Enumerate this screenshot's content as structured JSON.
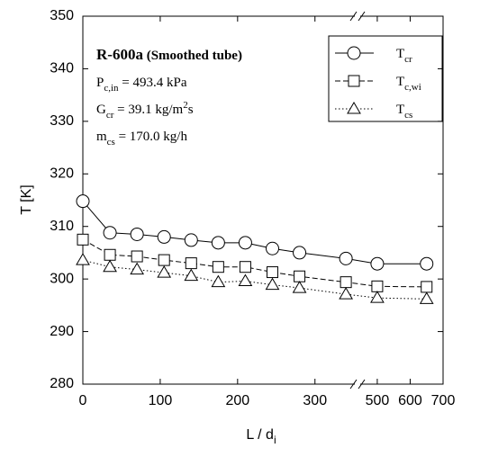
{
  "chart_data": {
    "type": "line",
    "xlabel": "L / d",
    "xlabel_sub": "i",
    "ylabel": "T  [K]",
    "annotation": {
      "title_bold": "R-600a",
      "title_rest": " (Smoothed tube)",
      "lines": [
        [
          {
            "t": "P",
            "s": "base"
          },
          {
            "t": "c,in",
            "s": "sub"
          },
          {
            "t": " = 493.4  kPa",
            "s": "base"
          }
        ],
        [
          {
            "t": "G",
            "s": "base"
          },
          {
            "t": "cr",
            "s": "sub"
          },
          {
            "t": " = 39.1  kg/m",
            "s": "base"
          },
          {
            "t": "2",
            "s": "sup"
          },
          {
            "t": "s",
            "s": "base"
          }
        ],
        [
          {
            "t": "m",
            "s": "base"
          },
          {
            "t": "cs",
            "s": "sub"
          },
          {
            "t": " = 170.0  kg/h",
            "s": "base"
          }
        ]
      ]
    },
    "xlim": [
      0,
      355
    ],
    "x2lim": [
      440,
      700
    ],
    "xticks": [
      0,
      100,
      200,
      300
    ],
    "x2ticks": [
      500,
      600,
      700
    ],
    "ylim": [
      280,
      350
    ],
    "yticks": [
      280,
      290,
      300,
      310,
      320,
      330,
      340,
      350
    ],
    "x": [
      0,
      35,
      70,
      105,
      140,
      175,
      210,
      245,
      280,
      340,
      500,
      650
    ],
    "legend": "upper right",
    "series": [
      {
        "name": "T",
        "name_sub": "cr",
        "color": "#000000",
        "marker": "circle",
        "dash": "solid",
        "values": [
          314.8,
          308.8,
          308.5,
          308.0,
          307.4,
          306.9,
          306.9,
          305.8,
          305.0,
          303.9,
          302.9,
          302.9
        ]
      },
      {
        "name": "T",
        "name_sub": "c,wi",
        "color": "#000000",
        "marker": "square",
        "dash": "dashed",
        "values": [
          307.5,
          304.6,
          304.3,
          303.6,
          303.0,
          302.3,
          302.3,
          301.3,
          300.5,
          299.4,
          298.6,
          298.5
        ]
      },
      {
        "name": "T",
        "name_sub": "cs",
        "color": "#000000",
        "marker": "triangle",
        "dash": "dotted",
        "values": [
          303.6,
          302.3,
          301.8,
          301.2,
          300.6,
          299.4,
          299.6,
          298.9,
          298.3,
          297.1,
          296.4,
          296.2
        ]
      }
    ]
  }
}
